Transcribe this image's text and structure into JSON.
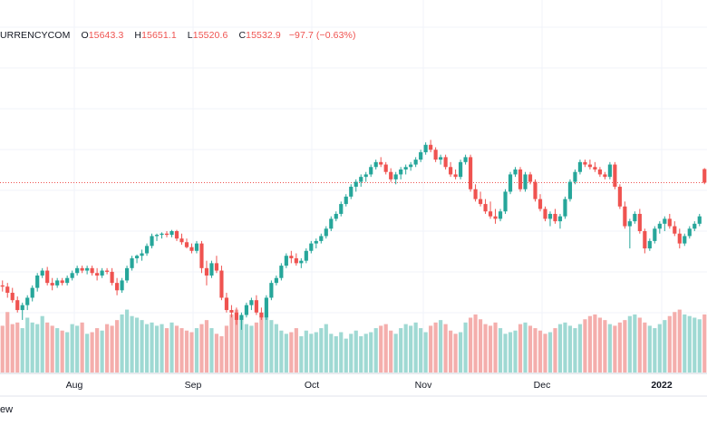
{
  "legend": {
    "symbol": "URRENCYCOM",
    "open_label": "O",
    "open": "15643.3",
    "high_label": "H",
    "high": "15651.1",
    "low_label": "L",
    "low": "15520.6",
    "close_label": "C",
    "close": "15532.9",
    "change": "−97.7 (−0.63%)"
  },
  "footer": {
    "text": "ew"
  },
  "colors": {
    "up": "#26a69a",
    "down": "#ef5350",
    "up_vol": "#9fd9d3",
    "down_vol": "#f4aeac",
    "grid": "#f0f3fa",
    "price_line": "#ef5350"
  },
  "chart_data": {
    "type": "candlestick",
    "title": "",
    "xlabel": "",
    "ylabel": "",
    "x_tick_labels": [
      "Aug",
      "Sep",
      "Oct",
      "Nov",
      "Dec",
      "2022"
    ],
    "ylim": [
      14280,
      16500
    ],
    "last_price": 15532.9,
    "candles": [
      [
        14700,
        14740,
        14650,
        14690
      ],
      [
        14690,
        14720,
        14600,
        14640
      ],
      [
        14640,
        14680,
        14560,
        14580
      ],
      [
        14580,
        14610,
        14480,
        14500
      ],
      [
        14500,
        14560,
        14420,
        14540
      ],
      [
        14540,
        14620,
        14500,
        14600
      ],
      [
        14600,
        14700,
        14570,
        14680
      ],
      [
        14680,
        14800,
        14650,
        14780
      ],
      [
        14780,
        14840,
        14760,
        14820
      ],
      [
        14820,
        14850,
        14700,
        14720
      ],
      [
        14720,
        14760,
        14660,
        14700
      ],
      [
        14700,
        14760,
        14680,
        14740
      ],
      [
        14740,
        14760,
        14700,
        14720
      ],
      [
        14720,
        14780,
        14700,
        14760
      ],
      [
        14760,
        14820,
        14740,
        14800
      ],
      [
        14800,
        14860,
        14780,
        14840
      ],
      [
        14840,
        14860,
        14800,
        14820
      ],
      [
        14820,
        14860,
        14790,
        14840
      ],
      [
        14840,
        14860,
        14780,
        14800
      ],
      [
        14800,
        14840,
        14740,
        14780
      ],
      [
        14780,
        14840,
        14760,
        14820
      ],
      [
        14820,
        14840,
        14790,
        14810
      ],
      [
        14810,
        14840,
        14700,
        14720
      ],
      [
        14720,
        14760,
        14620,
        14660
      ],
      [
        14660,
        14760,
        14640,
        14740
      ],
      [
        14740,
        14860,
        14720,
        14840
      ],
      [
        14840,
        14940,
        14820,
        14920
      ],
      [
        14920,
        14950,
        14880,
        14940
      ],
      [
        14940,
        14990,
        14900,
        14960
      ],
      [
        14960,
        15040,
        14940,
        15020
      ],
      [
        15020,
        15120,
        15000,
        15100
      ],
      [
        15100,
        15120,
        15060,
        15110
      ],
      [
        15110,
        15130,
        15080,
        15120
      ],
      [
        15120,
        15140,
        15090,
        15110
      ],
      [
        15110,
        15150,
        15090,
        15140
      ],
      [
        15140,
        15150,
        15060,
        15080
      ],
      [
        15080,
        15120,
        15030,
        15050
      ],
      [
        15050,
        15080,
        15000,
        15010
      ],
      [
        15010,
        15040,
        14960,
        14980
      ],
      [
        14980,
        15060,
        14960,
        15040
      ],
      [
        15040,
        15060,
        14800,
        14840
      ],
      [
        14840,
        14900,
        14700,
        14780
      ],
      [
        14780,
        14900,
        14760,
        14880
      ],
      [
        14880,
        14940,
        14800,
        14820
      ],
      [
        14820,
        14860,
        14580,
        14600
      ],
      [
        14600,
        14640,
        14480,
        14500
      ],
      [
        14500,
        14540,
        14440,
        14480
      ],
      [
        14480,
        14520,
        14380,
        14420
      ],
      [
        14420,
        14480,
        14340,
        14460
      ],
      [
        14460,
        14560,
        14440,
        14540
      ],
      [
        14540,
        14600,
        14500,
        14580
      ],
      [
        14580,
        14620,
        14460,
        14480
      ],
      [
        14480,
        14520,
        14420,
        14440
      ],
      [
        14440,
        14620,
        14420,
        14600
      ],
      [
        14600,
        14740,
        14580,
        14720
      ],
      [
        14720,
        14780,
        14700,
        14760
      ],
      [
        14760,
        14880,
        14740,
        14860
      ],
      [
        14860,
        14960,
        14840,
        14940
      ],
      [
        14940,
        14980,
        14880,
        14920
      ],
      [
        14920,
        14960,
        14860,
        14880
      ],
      [
        14880,
        14920,
        14840,
        14900
      ],
      [
        14900,
        15000,
        14880,
        14980
      ],
      [
        14980,
        15060,
        14960,
        15040
      ],
      [
        15040,
        15080,
        15000,
        15060
      ],
      [
        15060,
        15120,
        15040,
        15100
      ],
      [
        15100,
        15180,
        15080,
        15160
      ],
      [
        15160,
        15260,
        15140,
        15240
      ],
      [
        15240,
        15300,
        15220,
        15280
      ],
      [
        15280,
        15380,
        15260,
        15360
      ],
      [
        15360,
        15440,
        15340,
        15420
      ],
      [
        15420,
        15520,
        15400,
        15500
      ],
      [
        15500,
        15560,
        15460,
        15540
      ],
      [
        15540,
        15600,
        15500,
        15580
      ],
      [
        15580,
        15620,
        15540,
        15600
      ],
      [
        15600,
        15680,
        15580,
        15660
      ],
      [
        15660,
        15720,
        15640,
        15700
      ],
      [
        15700,
        15740,
        15660,
        15680
      ],
      [
        15680,
        15700,
        15600,
        15620
      ],
      [
        15620,
        15650,
        15540,
        15560
      ],
      [
        15560,
        15620,
        15520,
        15600
      ],
      [
        15600,
        15660,
        15560,
        15640
      ],
      [
        15640,
        15680,
        15600,
        15660
      ],
      [
        15660,
        15700,
        15630,
        15680
      ],
      [
        15680,
        15740,
        15660,
        15720
      ],
      [
        15720,
        15800,
        15700,
        15780
      ],
      [
        15780,
        15860,
        15760,
        15840
      ],
      [
        15840,
        15880,
        15780,
        15800
      ],
      [
        15800,
        15820,
        15700,
        15720
      ],
      [
        15720,
        15760,
        15680,
        15740
      ],
      [
        15740,
        15760,
        15640,
        15660
      ],
      [
        15660,
        15700,
        15580,
        15600
      ],
      [
        15600,
        15640,
        15560,
        15580
      ],
      [
        15580,
        15720,
        15560,
        15700
      ],
      [
        15700,
        15760,
        15680,
        15740
      ],
      [
        15740,
        15760,
        15460,
        15480
      ],
      [
        15480,
        15520,
        15380,
        15400
      ],
      [
        15400,
        15460,
        15340,
        15360
      ],
      [
        15360,
        15400,
        15280,
        15300
      ],
      [
        15300,
        15380,
        15240,
        15260
      ],
      [
        15260,
        15320,
        15200,
        15240
      ],
      [
        15240,
        15320,
        15220,
        15300
      ],
      [
        15300,
        15480,
        15280,
        15460
      ],
      [
        15460,
        15620,
        15440,
        15600
      ],
      [
        15600,
        15660,
        15580,
        15640
      ],
      [
        15640,
        15660,
        15460,
        15480
      ],
      [
        15480,
        15620,
        15460,
        15600
      ],
      [
        15600,
        15620,
        15520,
        15540
      ],
      [
        15540,
        15560,
        15380,
        15400
      ],
      [
        15400,
        15440,
        15300,
        15320
      ],
      [
        15320,
        15340,
        15220,
        15240
      ],
      [
        15240,
        15300,
        15180,
        15280
      ],
      [
        15280,
        15320,
        15200,
        15220
      ],
      [
        15220,
        15280,
        15160,
        15260
      ],
      [
        15260,
        15420,
        15240,
        15400
      ],
      [
        15400,
        15560,
        15380,
        15540
      ],
      [
        15540,
        15640,
        15520,
        15620
      ],
      [
        15620,
        15720,
        15600,
        15700
      ],
      [
        15700,
        15720,
        15660,
        15680
      ],
      [
        15680,
        15720,
        15640,
        15660
      ],
      [
        15660,
        15700,
        15620,
        15640
      ],
      [
        15640,
        15660,
        15580,
        15600
      ],
      [
        15600,
        15620,
        15560,
        15580
      ],
      [
        15580,
        15700,
        15560,
        15680
      ],
      [
        15680,
        15700,
        15480,
        15500
      ],
      [
        15500,
        15520,
        15320,
        15340
      ],
      [
        15340,
        15380,
        15160,
        15180
      ],
      [
        15180,
        15240,
        15000,
        15220
      ],
      [
        15220,
        15300,
        15200,
        15280
      ],
      [
        15280,
        15320,
        15120,
        15140
      ],
      [
        15140,
        15160,
        14960,
        15000
      ],
      [
        15000,
        15080,
        14980,
        15060
      ],
      [
        15060,
        15180,
        15040,
        15160
      ],
      [
        15160,
        15220,
        15120,
        15200
      ],
      [
        15200,
        15260,
        15140,
        15240
      ],
      [
        15240,
        15280,
        15160,
        15180
      ],
      [
        15180,
        15220,
        15100,
        15120
      ],
      [
        15120,
        15160,
        15000,
        15040
      ],
      [
        15040,
        15120,
        15020,
        15100
      ],
      [
        15100,
        15180,
        15080,
        15160
      ],
      [
        15160,
        15220,
        15140,
        15200
      ],
      [
        15200,
        15280,
        15180,
        15260
      ],
      [
        15643.3,
        15651.1,
        15520.6,
        15532.9
      ]
    ],
    "volumes": [
      58,
      75,
      60,
      62,
      55,
      68,
      62,
      60,
      70,
      62,
      58,
      55,
      52,
      50,
      60,
      58,
      62,
      48,
      50,
      55,
      52,
      60,
      58,
      65,
      72,
      78,
      70,
      68,
      65,
      60,
      62,
      58,
      60,
      55,
      62,
      58,
      55,
      52,
      50,
      55,
      60,
      65,
      55,
      48,
      45,
      58,
      72,
      78,
      68,
      60,
      58,
      62,
      70,
      75,
      65,
      60,
      52,
      48,
      50,
      55,
      45,
      52,
      48,
      50,
      55,
      60,
      48,
      45,
      50,
      42,
      48,
      52,
      45,
      48,
      50,
      55,
      58,
      60,
      52,
      48,
      55,
      60,
      58,
      62,
      55,
      50,
      58,
      62,
      65,
      60,
      52,
      48,
      50,
      62,
      68,
      72,
      66,
      60,
      58,
      62,
      55,
      48,
      50,
      52,
      60,
      62,
      58,
      55,
      52,
      48,
      50,
      55,
      60,
      62,
      58,
      55,
      60,
      66,
      70,
      72,
      68,
      65,
      60,
      58,
      62,
      65,
      70,
      72,
      68,
      62,
      58,
      55,
      60,
      65,
      70,
      75,
      78,
      72,
      70,
      68,
      66,
      72
    ],
    "vol_max": 100
  }
}
